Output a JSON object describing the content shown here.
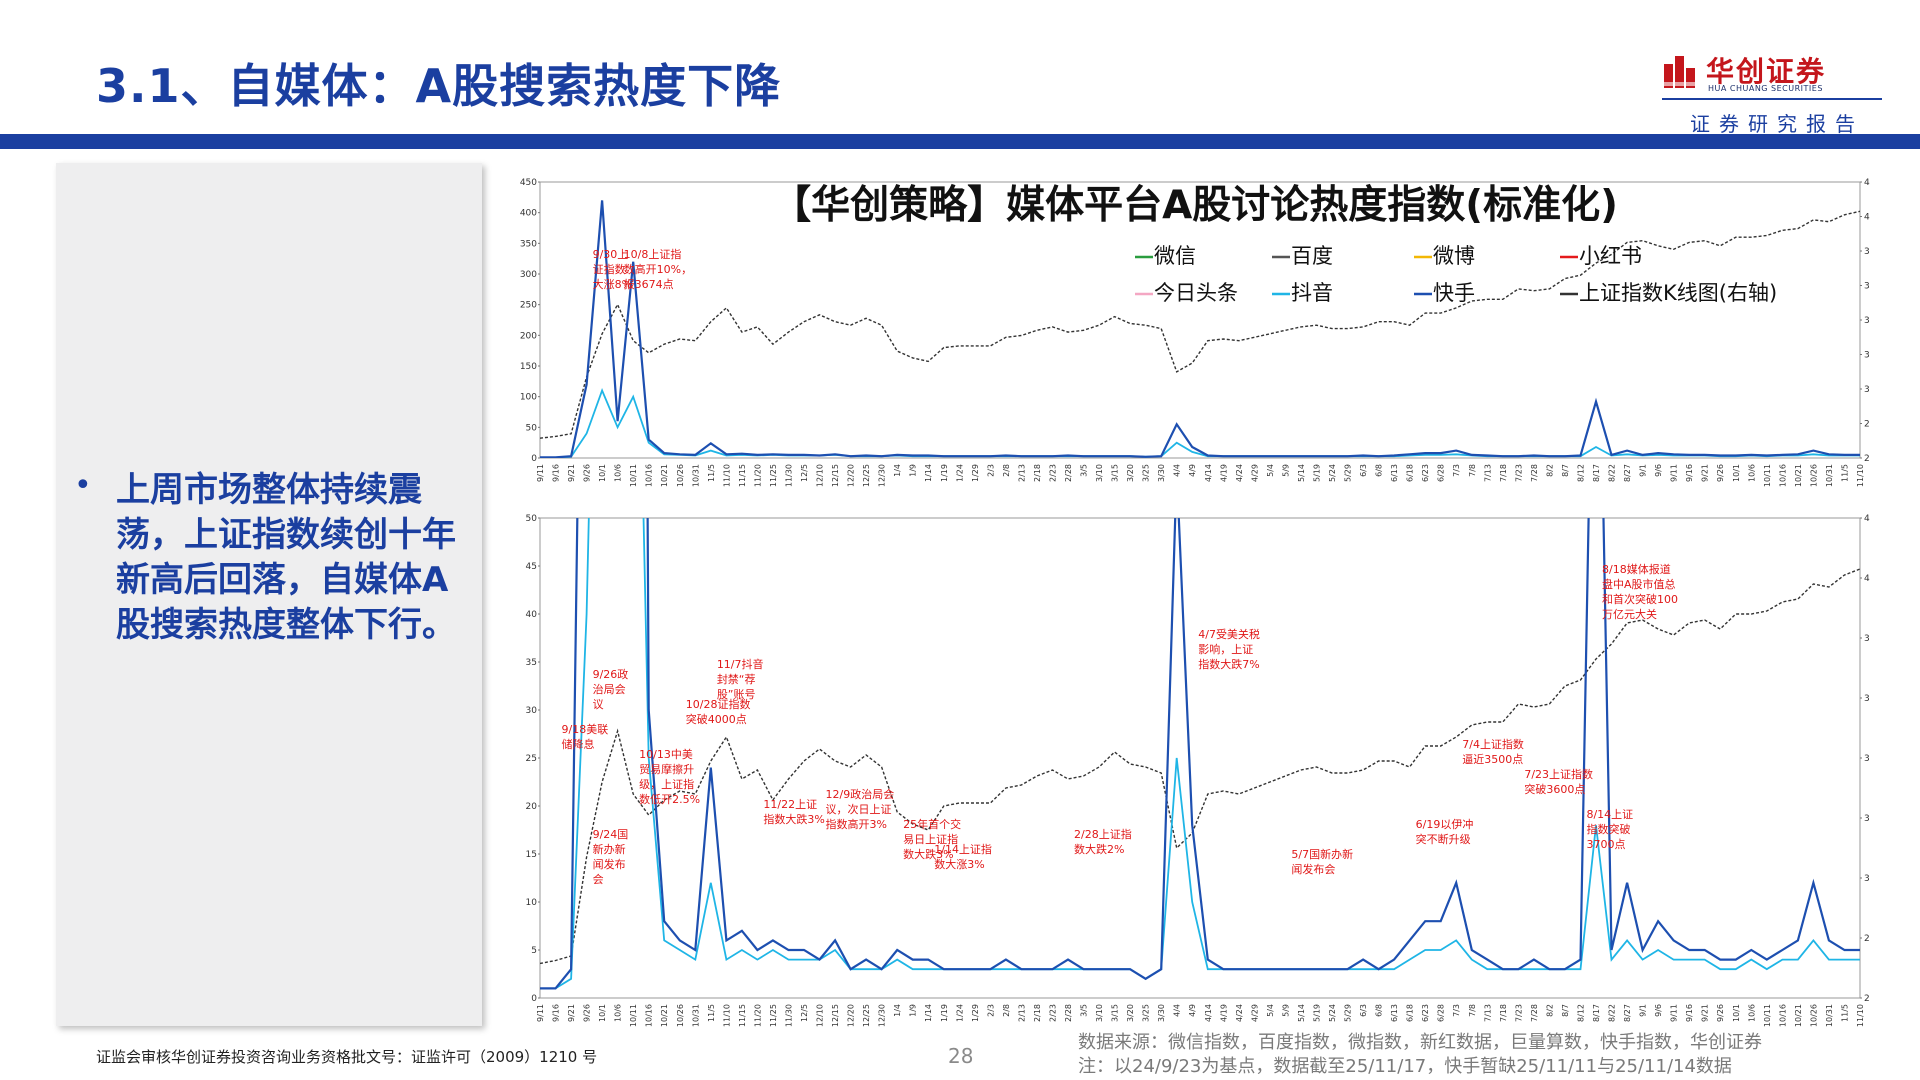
{
  "page": {
    "title": "3.1、自媒体：A股搜索热度下降",
    "brand_name": "华创证券",
    "brand_sub": "HUA CHUANG SECURITIES",
    "subtitle": "证券研究报告",
    "bullet_text": "上周市场整体持续震荡，上证指数续创十年新高后回落，自媒体A股搜索热度整体下行。",
    "footer_license": "证监会审核华创证券投资咨询业务资格批文号：证监许可（2009）1210 号",
    "page_number": "28",
    "source_line1": "数据来源：微信指数，百度指数，微指数，新红数据，巨量算数，快手指数，华创证券",
    "source_line2": "注：以24/9/23为基点，数据截至25/11/17，快手暂缺25/11/11与25/11/14数据",
    "colors": {
      "primary": "#1b3fa0",
      "brand_red": "#c4161c",
      "annotation": "#e01818"
    }
  },
  "chart_data": {
    "type": "line",
    "title": "【华创策略】媒体平台A股讨论热度指数(标准化)",
    "x": [
      "9/11",
      "9/16",
      "9/21",
      "9/26",
      "10/1",
      "10/6",
      "10/11",
      "10/16",
      "10/21",
      "10/26",
      "10/31",
      "11/5",
      "11/10",
      "11/15",
      "11/20",
      "11/25",
      "11/30",
      "12/5",
      "12/10",
      "12/15",
      "12/20",
      "12/25",
      "12/30",
      "1/4",
      "1/9",
      "1/14",
      "1/19",
      "1/24",
      "1/29",
      "2/3",
      "2/8",
      "2/13",
      "2/18",
      "2/23",
      "2/28",
      "3/5",
      "3/10",
      "3/15",
      "3/20",
      "3/25",
      "3/30",
      "4/4",
      "4/9",
      "4/14",
      "4/19",
      "4/24",
      "4/29",
      "5/4",
      "5/9",
      "5/14",
      "5/19",
      "5/24",
      "5/29",
      "6/3",
      "6/8",
      "6/13",
      "6/18",
      "6/23",
      "6/28",
      "7/3",
      "7/8",
      "7/13",
      "7/18",
      "7/23",
      "7/28",
      "8/2",
      "8/7",
      "8/12",
      "8/17",
      "8/22",
      "8/27",
      "9/1",
      "9/6",
      "9/11",
      "9/16",
      "9/21",
      "9/26",
      "10/1",
      "10/6",
      "10/11",
      "10/16",
      "10/21",
      "10/26",
      "10/31",
      "11/5",
      "11/10"
    ],
    "legend": [
      "微信",
      "百度",
      "微博",
      "小红书",
      "今日头条",
      "抖音",
      "快手",
      "上证指数K线图(右轴)"
    ],
    "legend_colors": [
      "#2a9d3f",
      "#555555",
      "#f2b705",
      "#e41a1c",
      "#f4a7c3",
      "#1fb5e6",
      "#1d4fb0",
      "#333333"
    ],
    "panels": [
      {
        "name": "top",
        "ylim_left": [
          0,
          450
        ],
        "yticks_left": [
          0,
          50,
          100,
          150,
          200,
          250,
          300,
          350,
          400,
          450
        ],
        "ylim_right": [
          2600,
          4200
        ],
        "yticks_right": [
          2600,
          2800,
          3000,
          3200,
          3400,
          3600,
          3800,
          4000,
          4200
        ]
      },
      {
        "name": "bottom",
        "ylim_left": [
          0,
          50
        ],
        "yticks_left": [
          0,
          5,
          10,
          15,
          20,
          25,
          30,
          35,
          40,
          45,
          50
        ],
        "ylim_right": [
          2600,
          4200
        ],
        "yticks_right": [
          2600,
          2800,
          3000,
          3200,
          3400,
          3600,
          3800,
          4000,
          4200
        ]
      }
    ],
    "series": [
      {
        "name": "快手",
        "values": [
          1,
          1,
          3,
          120,
          420,
          60,
          320,
          30,
          8,
          6,
          5,
          24,
          6,
          7,
          5,
          6,
          5,
          5,
          4,
          6,
          3,
          4,
          3,
          5,
          4,
          4,
          3,
          3,
          3,
          3,
          4,
          3,
          3,
          3,
          4,
          3,
          3,
          3,
          3,
          2,
          3,
          55,
          18,
          4,
          3,
          3,
          3,
          3,
          3,
          3,
          3,
          3,
          3,
          4,
          3,
          4,
          6,
          8,
          8,
          12,
          5,
          4,
          3,
          3,
          4,
          3,
          3,
          4,
          92,
          5,
          12,
          5,
          8,
          6,
          5,
          5,
          4,
          4,
          5,
          4,
          5,
          6,
          12,
          6,
          5,
          5
        ]
      },
      {
        "name": "抖音",
        "values": [
          1,
          1,
          2,
          40,
          110,
          50,
          100,
          25,
          6,
          5,
          4,
          12,
          4,
          5,
          4,
          5,
          4,
          4,
          4,
          5,
          3,
          3,
          3,
          4,
          3,
          3,
          3,
          3,
          3,
          3,
          3,
          3,
          3,
          3,
          3,
          3,
          3,
          3,
          3,
          2,
          3,
          25,
          10,
          3,
          3,
          3,
          3,
          3,
          3,
          3,
          3,
          3,
          3,
          3,
          3,
          3,
          4,
          5,
          5,
          6,
          4,
          3,
          3,
          3,
          3,
          3,
          3,
          3,
          18,
          4,
          6,
          4,
          5,
          4,
          4,
          4,
          3,
          3,
          4,
          3,
          4,
          4,
          6,
          4,
          4,
          4
        ]
      },
      {
        "name": "上证指数K线图(右轴)",
        "values": [
          2715,
          2725,
          2740,
          3070,
          3320,
          3490,
          3280,
          3210,
          3260,
          3290,
          3280,
          3390,
          3470,
          3330,
          3360,
          3260,
          3330,
          3390,
          3430,
          3390,
          3370,
          3410,
          3370,
          3220,
          3180,
          3160,
          3240,
          3250,
          3250,
          3250,
          3300,
          3310,
          3340,
          3360,
          3330,
          3340,
          3370,
          3420,
          3380,
          3370,
          3350,
          3100,
          3150,
          3280,
          3290,
          3280,
          3300,
          3320,
          3340,
          3360,
          3370,
          3350,
          3350,
          3360,
          3390,
          3390,
          3370,
          3440,
          3440,
          3470,
          3510,
          3520,
          3520,
          3580,
          3570,
          3580,
          3640,
          3660,
          3730,
          3780,
          3850,
          3860,
          3830,
          3810,
          3850,
          3860,
          3830,
          3880,
          3880,
          3890,
          3920,
          3930,
          3980,
          3970,
          4010,
          4030
        ]
      }
    ],
    "annotations": [
      {
        "panel": "top",
        "x": "9/30",
        "text": [
          "9/30上",
          "证指数",
          "大涨8%"
        ]
      },
      {
        "panel": "top",
        "x": "10/8",
        "text": [
          "10/8上证指",
          "数高开10%，",
          "报3674点"
        ]
      },
      {
        "panel": "bottom",
        "x": "9/26",
        "text": [
          "9/26政",
          "治局会",
          "议"
        ]
      },
      {
        "panel": "bottom",
        "x": "9/24",
        "text": [
          "9/24国",
          "新办新",
          "闻发布",
          "会"
        ]
      },
      {
        "panel": "bottom",
        "x": "11/7",
        "text": [
          "11/7抖音",
          "封禁“荐",
          "股”账号"
        ]
      },
      {
        "panel": "bottom",
        "x": "11/22",
        "text": [
          "11/22上证",
          "指数大跌3%"
        ]
      },
      {
        "panel": "bottom",
        "x": "12/9",
        "text": [
          "12/9政治局会",
          "议，次日上证",
          "指数高开3%"
        ]
      },
      {
        "panel": "bottom",
        "x": "1/2",
        "text": [
          "25年首个交",
          "易日上证指",
          "数大跌3%"
        ]
      },
      {
        "panel": "bottom",
        "x": "1/14",
        "text": [
          "1/14上证指",
          "数大涨3%"
        ]
      },
      {
        "panel": "bottom",
        "x": "2/28",
        "text": [
          "2/28上证指",
          "数大跌2%"
        ]
      },
      {
        "panel": "bottom",
        "x": "4/7",
        "text": [
          "4/7受美关税",
          "影响，上证",
          "指数大跌7%"
        ]
      },
      {
        "panel": "bottom",
        "x": "5/7",
        "text": [
          "5/7国新办新",
          "闻发布会"
        ]
      },
      {
        "panel": "bottom",
        "x": "6/19",
        "text": [
          "6/19以伊冲",
          "突不断升级"
        ]
      },
      {
        "panel": "bottom",
        "x": "7/4",
        "text": [
          "7/4上证指数",
          "逼近3500点"
        ]
      },
      {
        "panel": "bottom",
        "x": "7/23",
        "text": [
          "7/23上证指数",
          "突破3600点"
        ]
      },
      {
        "panel": "bottom",
        "x": "8/14",
        "text": [
          "8/14上证",
          "指数突破",
          "3700点"
        ]
      },
      {
        "panel": "bottom",
        "x": "8/18",
        "text": [
          "8/18媒体报道",
          "盘中A股市值总",
          "和首次突破100",
          "万亿元大关"
        ]
      },
      {
        "panel": "bottom",
        "x": "9/18",
        "text": [
          "9/18美联",
          "储降息"
        ]
      },
      {
        "panel": "bottom",
        "x": "10/13",
        "text": [
          "10/13中美",
          "贸易摩擦升",
          "级，上证指",
          "数低开2.5%"
        ]
      },
      {
        "panel": "bottom",
        "x": "10/28",
        "text": [
          "10/28证指数",
          "突破4000点"
        ]
      }
    ]
  }
}
